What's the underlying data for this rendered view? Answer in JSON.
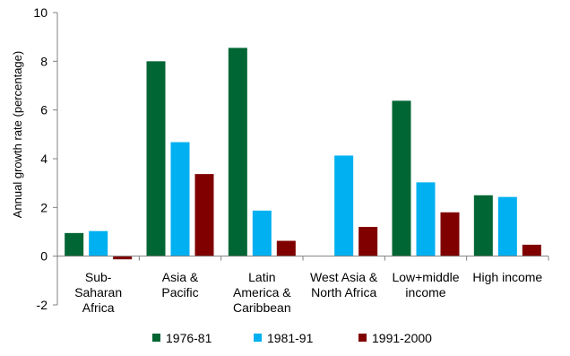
{
  "chart_data": {
    "type": "bar",
    "title": "",
    "xlabel": "",
    "ylabel": "Annual growth rate (percentage)",
    "ylim": [
      -2,
      10
    ],
    "yticks": [
      -2,
      0,
      2,
      4,
      6,
      8,
      10
    ],
    "grid": false,
    "legend_position": "bottom",
    "categories": [
      [
        "Sub-",
        "Saharan",
        "Africa"
      ],
      [
        "Asia &",
        "Pacific"
      ],
      [
        "Latin",
        "America &",
        "Caribbean"
      ],
      [
        "West Asia &",
        "North Africa"
      ],
      [
        "Low+middle",
        "income"
      ],
      [
        "High income"
      ]
    ],
    "series": [
      {
        "name": "1976-81",
        "color": "#006633",
        "values": [
          0.95,
          8.0,
          8.55,
          null,
          6.38,
          2.5
        ]
      },
      {
        "name": "1981-91",
        "color": "#00B0F0",
        "values": [
          1.03,
          4.68,
          1.87,
          4.13,
          3.03,
          2.43
        ]
      },
      {
        "name": "1991-2000",
        "color": "#800000",
        "values": [
          -0.13,
          3.37,
          0.63,
          1.2,
          1.8,
          0.47
        ]
      }
    ]
  }
}
